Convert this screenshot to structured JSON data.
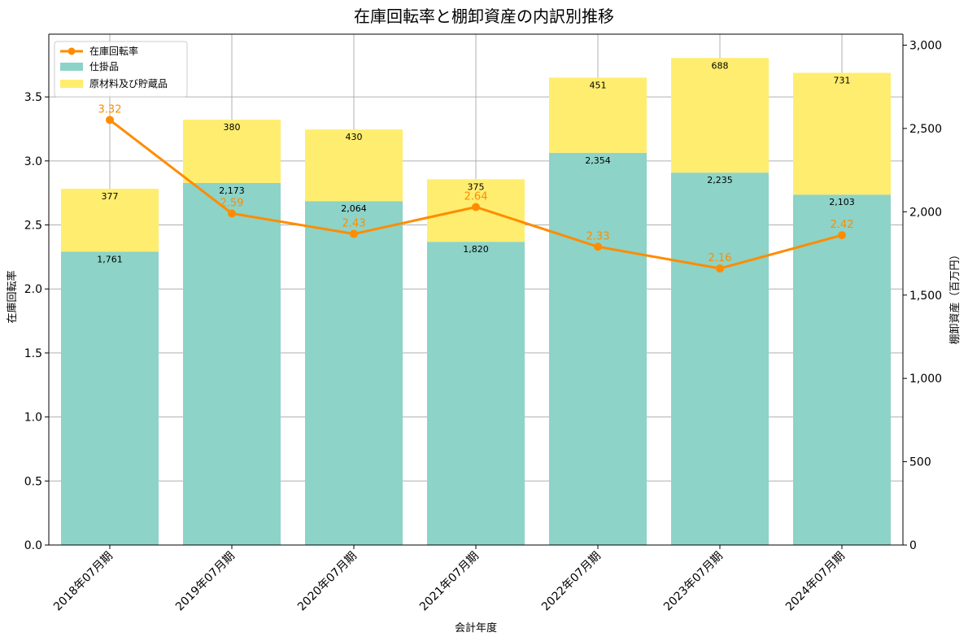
{
  "chart_data": {
    "type": "bar",
    "title": "在庫回転率と棚卸資産の内訳別推移",
    "xlabel": "会計年度",
    "ylabel_left": "在庫回転率",
    "ylabel_right": "棚卸資産（百万円）",
    "categories": [
      "2018年07月期",
      "2019年07月期",
      "2020年07月期",
      "2021年07月期",
      "2022年07月期",
      "2023年07月期",
      "2024年07月期"
    ],
    "series": [
      {
        "name": "仕掛品",
        "kind": "stacked-bar",
        "axis": "right",
        "color": "#8dd3c7",
        "values": [
          1761,
          2173,
          2064,
          1820,
          2354,
          2235,
          2103
        ],
        "labels": [
          "1,761",
          "2,173",
          "2,064",
          "1,820",
          "2,354",
          "2,235",
          "2,103"
        ]
      },
      {
        "name": "原材料及び貯蔵品",
        "kind": "stacked-bar",
        "axis": "right",
        "color": "#ffed6f",
        "values": [
          377,
          380,
          430,
          375,
          451,
          688,
          731
        ],
        "labels": [
          "377",
          "380",
          "430",
          "375",
          "451",
          "688",
          "731"
        ]
      },
      {
        "name": "在庫回転率",
        "kind": "line",
        "axis": "left",
        "color": "#ff8c00",
        "values": [
          3.32,
          2.59,
          2.43,
          2.64,
          2.33,
          2.16,
          2.42
        ],
        "labels": [
          "3.32",
          "2.59",
          "2.43",
          "2.64",
          "2.33",
          "2.16",
          "2.42"
        ]
      }
    ],
    "ylim_left": [
      0,
      3.99
    ],
    "yticks_left": [
      "0.0",
      "0.5",
      "1.0",
      "1.5",
      "2.0",
      "2.5",
      "3.0",
      "3.5"
    ],
    "ylim_right": [
      0,
      3066
    ],
    "yticks_right": [
      "0",
      "500",
      "1,000",
      "1,500",
      "2,000",
      "2,500",
      "3,000"
    ],
    "grid": true,
    "legend_position": "top-left",
    "legend_order": [
      "在庫回転率",
      "仕掛品",
      "原材料及び貯蔵品"
    ]
  }
}
